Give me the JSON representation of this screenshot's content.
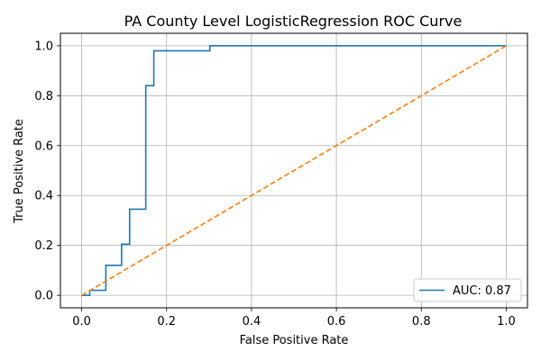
{
  "chart_data": {
    "type": "line",
    "title": "PA County Level LogisticRegression ROC Curve",
    "xlabel": "False Positive Rate",
    "ylabel": "True Positive Rate",
    "xlim": [
      -0.05,
      1.05
    ],
    "ylim": [
      -0.05,
      1.05
    ],
    "xticks": [
      0.0,
      0.2,
      0.4,
      0.6,
      0.8,
      1.0
    ],
    "yticks": [
      0.0,
      0.2,
      0.4,
      0.6,
      0.8,
      1.0
    ],
    "xtick_labels": [
      "0.0",
      "0.2",
      "0.4",
      "0.6",
      "0.8",
      "1.0"
    ],
    "ytick_labels": [
      "0.0",
      "0.2",
      "0.4",
      "0.6",
      "0.8",
      "1.0"
    ],
    "grid": true,
    "legend_position": "lower-right",
    "series": [
      {
        "name": "AUC: 0.87",
        "color": "#1f77b4",
        "style": "solid",
        "x": [
          0.0,
          0.0,
          0.019,
          0.019,
          0.057,
          0.057,
          0.094,
          0.094,
          0.113,
          0.113,
          0.151,
          0.151,
          0.17,
          0.17,
          0.302,
          0.302,
          1.0
        ],
        "y": [
          0.0,
          0.0,
          0.0,
          0.02,
          0.02,
          0.12,
          0.12,
          0.205,
          0.205,
          0.345,
          0.345,
          0.84,
          0.84,
          0.98,
          0.98,
          1.0,
          1.0
        ]
      },
      {
        "name": "",
        "color": "#ff7f0e",
        "style": "dashed",
        "x": [
          0.0,
          1.0
        ],
        "y": [
          0.0,
          1.0
        ]
      }
    ]
  }
}
